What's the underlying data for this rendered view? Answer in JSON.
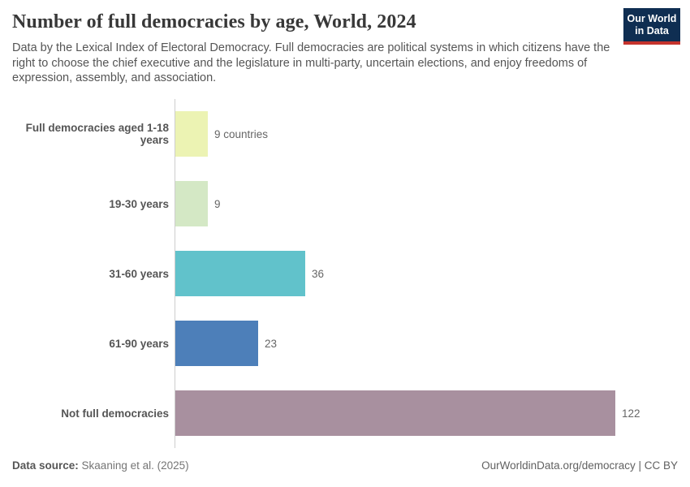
{
  "header": {
    "title": "Number of full democracies by age, World, 2024",
    "subtitle": "Data by the Lexical Index of Electoral Democracy. Full democracies are political systems in which citizens have the right to choose the chief executive and the legislature in multi-party, uncertain elections, and enjoy freedoms of expression, assembly, and association.",
    "logo": {
      "line1": "Our World",
      "line2": "in Data",
      "bg": "#0F2E52",
      "accent": "#C5332D"
    }
  },
  "chart_data": {
    "type": "bar",
    "orientation": "horizontal",
    "title": "Number of full democracies by age, World, 2024",
    "categories": [
      "Full democracies aged 1-18 years",
      "19-30 years",
      "31-60 years",
      "61-90 years",
      "Not full democracies"
    ],
    "values": [
      9,
      9,
      36,
      23,
      122
    ],
    "value_labels": [
      "9 countries",
      "9",
      "36",
      "23",
      "122"
    ],
    "bar_colors": [
      "#ECF3B3",
      "#D4E8C5",
      "#61C2CB",
      "#4D7FB9",
      "#A8909F"
    ],
    "xlabel": "",
    "ylabel": "",
    "xlim": [
      0,
      122
    ],
    "grid": false,
    "legend": "none",
    "axis_line_color": "#cdcdcd"
  },
  "footer": {
    "datasource_label": "Data source:",
    "datasource_value": "Skaaning et al. (2025)",
    "link": "OurWorldinData.org/democracy | CC BY"
  }
}
